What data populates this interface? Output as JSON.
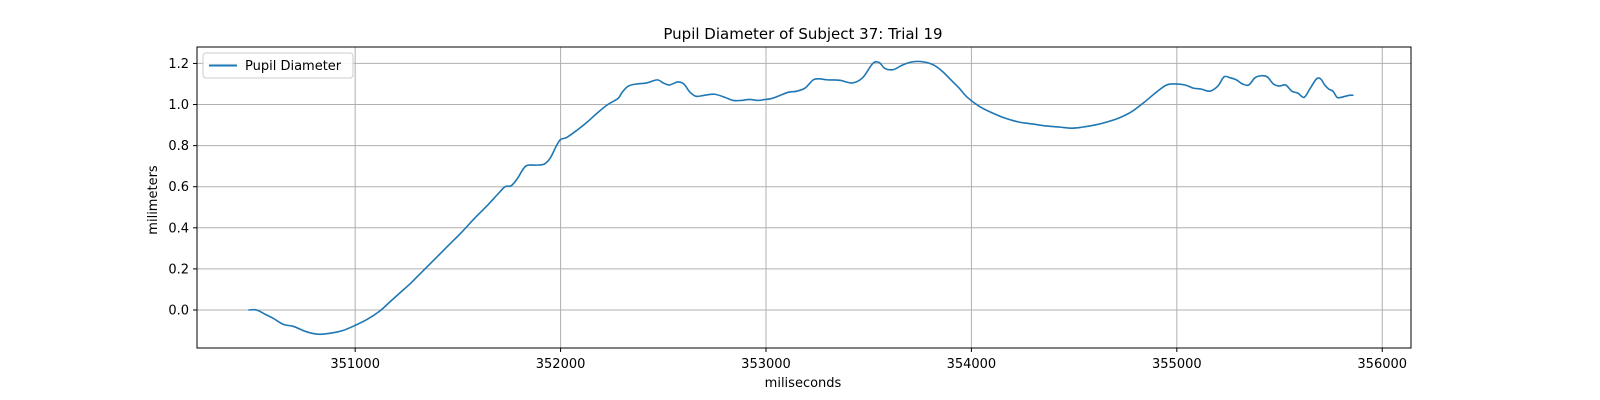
{
  "chart_data": {
    "type": "line",
    "title": "Pupil Diameter of Subject 37: Trial 19",
    "xlabel": "miliseconds",
    "ylabel": "milimeters",
    "xlim": [
      350230,
      356140
    ],
    "ylim": [
      -0.185,
      1.28
    ],
    "xticks": [
      351000,
      352000,
      353000,
      354000,
      355000,
      356000
    ],
    "yticks": [
      0.0,
      0.2,
      0.4,
      0.6,
      0.8,
      1.0,
      1.2
    ],
    "grid": true,
    "legend_position": "top-left",
    "colors": {
      "series": "#1f77b4",
      "grid": "#b0b0b0",
      "axes": "#000000"
    },
    "series": [
      {
        "name": "Pupil Diameter",
        "x": [
          350480,
          350520,
          350560,
          350600,
          350650,
          350700,
          350760,
          350820,
          350880,
          350940,
          351000,
          351060,
          351120,
          351170,
          351220,
          351270,
          351300,
          351340,
          351400,
          351460,
          351520,
          351580,
          351640,
          351700,
          351730,
          351760,
          351790,
          351830,
          351880,
          351920,
          351950,
          351980,
          352000,
          352030,
          352080,
          352130,
          352180,
          352230,
          352280,
          352300,
          352330,
          352370,
          352420,
          352470,
          352500,
          352530,
          352570,
          352600,
          352630,
          352660,
          352700,
          352750,
          352800,
          352840,
          352880,
          352920,
          352960,
          353000,
          353030,
          353070,
          353110,
          353150,
          353190,
          353230,
          353260,
          353300,
          353360,
          353420,
          353470,
          353520,
          353550,
          353580,
          353620,
          353660,
          353700,
          353740,
          353780,
          353820,
          353860,
          353900,
          353940,
          353980,
          354040,
          354100,
          354160,
          354230,
          354300,
          354370,
          354430,
          354490,
          354540,
          354600,
          354660,
          354720,
          354780,
          354840,
          354900,
          354950,
          354990,
          355040,
          355080,
          355120,
          355160,
          355200,
          355230,
          355260,
          355290,
          355320,
          355350,
          355380,
          355410,
          355440,
          355470,
          355500,
          355530,
          355560,
          355590,
          355620,
          355650,
          355680,
          355700,
          355720,
          355740,
          355760,
          355780,
          355800,
          355820,
          355840,
          355860
        ],
        "values": [
          0.0,
          0.0,
          -0.02,
          -0.04,
          -0.07,
          -0.08,
          -0.105,
          -0.118,
          -0.113,
          -0.1,
          -0.075,
          -0.045,
          -0.005,
          0.04,
          0.085,
          0.13,
          0.16,
          0.2,
          0.26,
          0.32,
          0.38,
          0.445,
          0.505,
          0.57,
          0.6,
          0.605,
          0.64,
          0.7,
          0.705,
          0.71,
          0.74,
          0.8,
          0.83,
          0.84,
          0.875,
          0.915,
          0.96,
          1.0,
          1.03,
          1.06,
          1.09,
          1.1,
          1.105,
          1.12,
          1.105,
          1.095,
          1.11,
          1.1,
          1.06,
          1.04,
          1.045,
          1.05,
          1.035,
          1.02,
          1.02,
          1.025,
          1.02,
          1.025,
          1.03,
          1.045,
          1.06,
          1.065,
          1.08,
          1.12,
          1.125,
          1.12,
          1.118,
          1.105,
          1.13,
          1.2,
          1.205,
          1.175,
          1.17,
          1.19,
          1.205,
          1.21,
          1.205,
          1.19,
          1.16,
          1.12,
          1.08,
          1.035,
          0.99,
          0.96,
          0.935,
          0.915,
          0.905,
          0.895,
          0.89,
          0.885,
          0.89,
          0.9,
          0.915,
          0.935,
          0.965,
          1.01,
          1.06,
          1.095,
          1.1,
          1.095,
          1.08,
          1.075,
          1.065,
          1.09,
          1.135,
          1.13,
          1.12,
          1.1,
          1.095,
          1.13,
          1.14,
          1.135,
          1.1,
          1.09,
          1.095,
          1.065,
          1.055,
          1.035,
          1.08,
          1.125,
          1.125,
          1.095,
          1.075,
          1.065,
          1.035,
          1.035,
          1.04,
          1.045,
          1.045
        ]
      }
    ]
  }
}
